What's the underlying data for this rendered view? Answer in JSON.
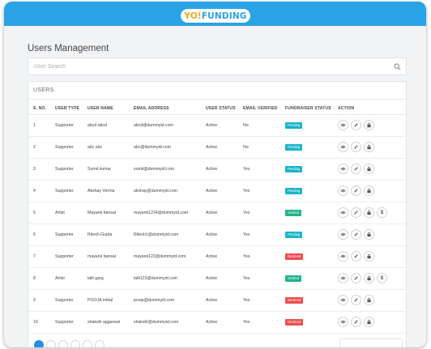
{
  "brand": {
    "logo_yo": "YO!",
    "logo_rest": "FUNDING"
  },
  "page": {
    "title": "Users Management"
  },
  "search": {
    "placeholder": "User Search"
  },
  "table": {
    "heading": "USERS",
    "columns": [
      "S. NO.",
      "USER TYPE",
      "USER NAME",
      "EMAIL ADDRESS",
      "USER STATUS",
      "EMAIL VERIFIED",
      "FUNDRAISER STATUS",
      "ACTION"
    ],
    "rows": [
      {
        "sno": "1",
        "type": "Supporter",
        "name": "abcd abcd",
        "email": "abcd@dummyid.com",
        "status": "Active",
        "verified": "No",
        "fundraiser": "Pending",
        "dollar": false
      },
      {
        "sno": "2",
        "type": "Supporter",
        "name": "abc abc",
        "email": "abc@dummyid.com",
        "status": "Active",
        "verified": "No",
        "fundraiser": "Pending",
        "dollar": false
      },
      {
        "sno": "3",
        "type": "Supporter",
        "name": "Sumit kumar",
        "email": "sumit@dummyid.com",
        "status": "Active",
        "verified": "Yes",
        "fundraiser": "Pending",
        "dollar": false
      },
      {
        "sno": "4",
        "type": "Supporter",
        "name": "Akshay Verma",
        "email": "akshay@dummyid.com",
        "status": "Active",
        "verified": "Yes",
        "fundraiser": "Pending",
        "dollar": false
      },
      {
        "sno": "5",
        "type": "Artist",
        "name": "Mayank bansal",
        "email": "mayank1234@dummyid.com",
        "status": "Active",
        "verified": "Yes",
        "fundraiser": "Verified",
        "dollar": true
      },
      {
        "sno": "6",
        "type": "Supporter",
        "name": "Ritesh Gupta",
        "email": "Ritesh1@dummyid.com",
        "status": "Active",
        "verified": "Yes",
        "fundraiser": "Pending",
        "dollar": false
      },
      {
        "sno": "7",
        "type": "Supporter",
        "name": "mayank bansal",
        "email": "mayank123@dummyid.com",
        "status": "Active",
        "verified": "Yes",
        "fundraiser": "Declined",
        "dollar": false
      },
      {
        "sno": "8",
        "type": "Artist",
        "name": "lalit garg",
        "email": "lalit123@dummyid.com",
        "status": "Active",
        "verified": "Yes",
        "fundraiser": "Verified",
        "dollar": true
      },
      {
        "sno": "9",
        "type": "Supporter",
        "name": "POOJA mittal",
        "email": "pooja@dummyid.com",
        "status": "Active",
        "verified": "Yes",
        "fundraiser": "Declined",
        "dollar": false
      },
      {
        "sno": "10",
        "type": "Supporter",
        "name": "shakshi aggarwal",
        "email": "shakshi@dummyid.com",
        "status": "Active",
        "verified": "Yes",
        "fundraiser": "Declined",
        "dollar": false
      }
    ]
  },
  "badge_colors": {
    "Pending": "#1ab3c9",
    "Verified": "#21b389",
    "Declined": "#ee4d4d"
  },
  "action_icons": [
    "eye-icon",
    "pencil-icon",
    "lock-icon",
    "dollar-icon"
  ],
  "dollar_glyph": "$",
  "pagination": {
    "active_page_count": 1,
    "shown_pages": 6
  }
}
